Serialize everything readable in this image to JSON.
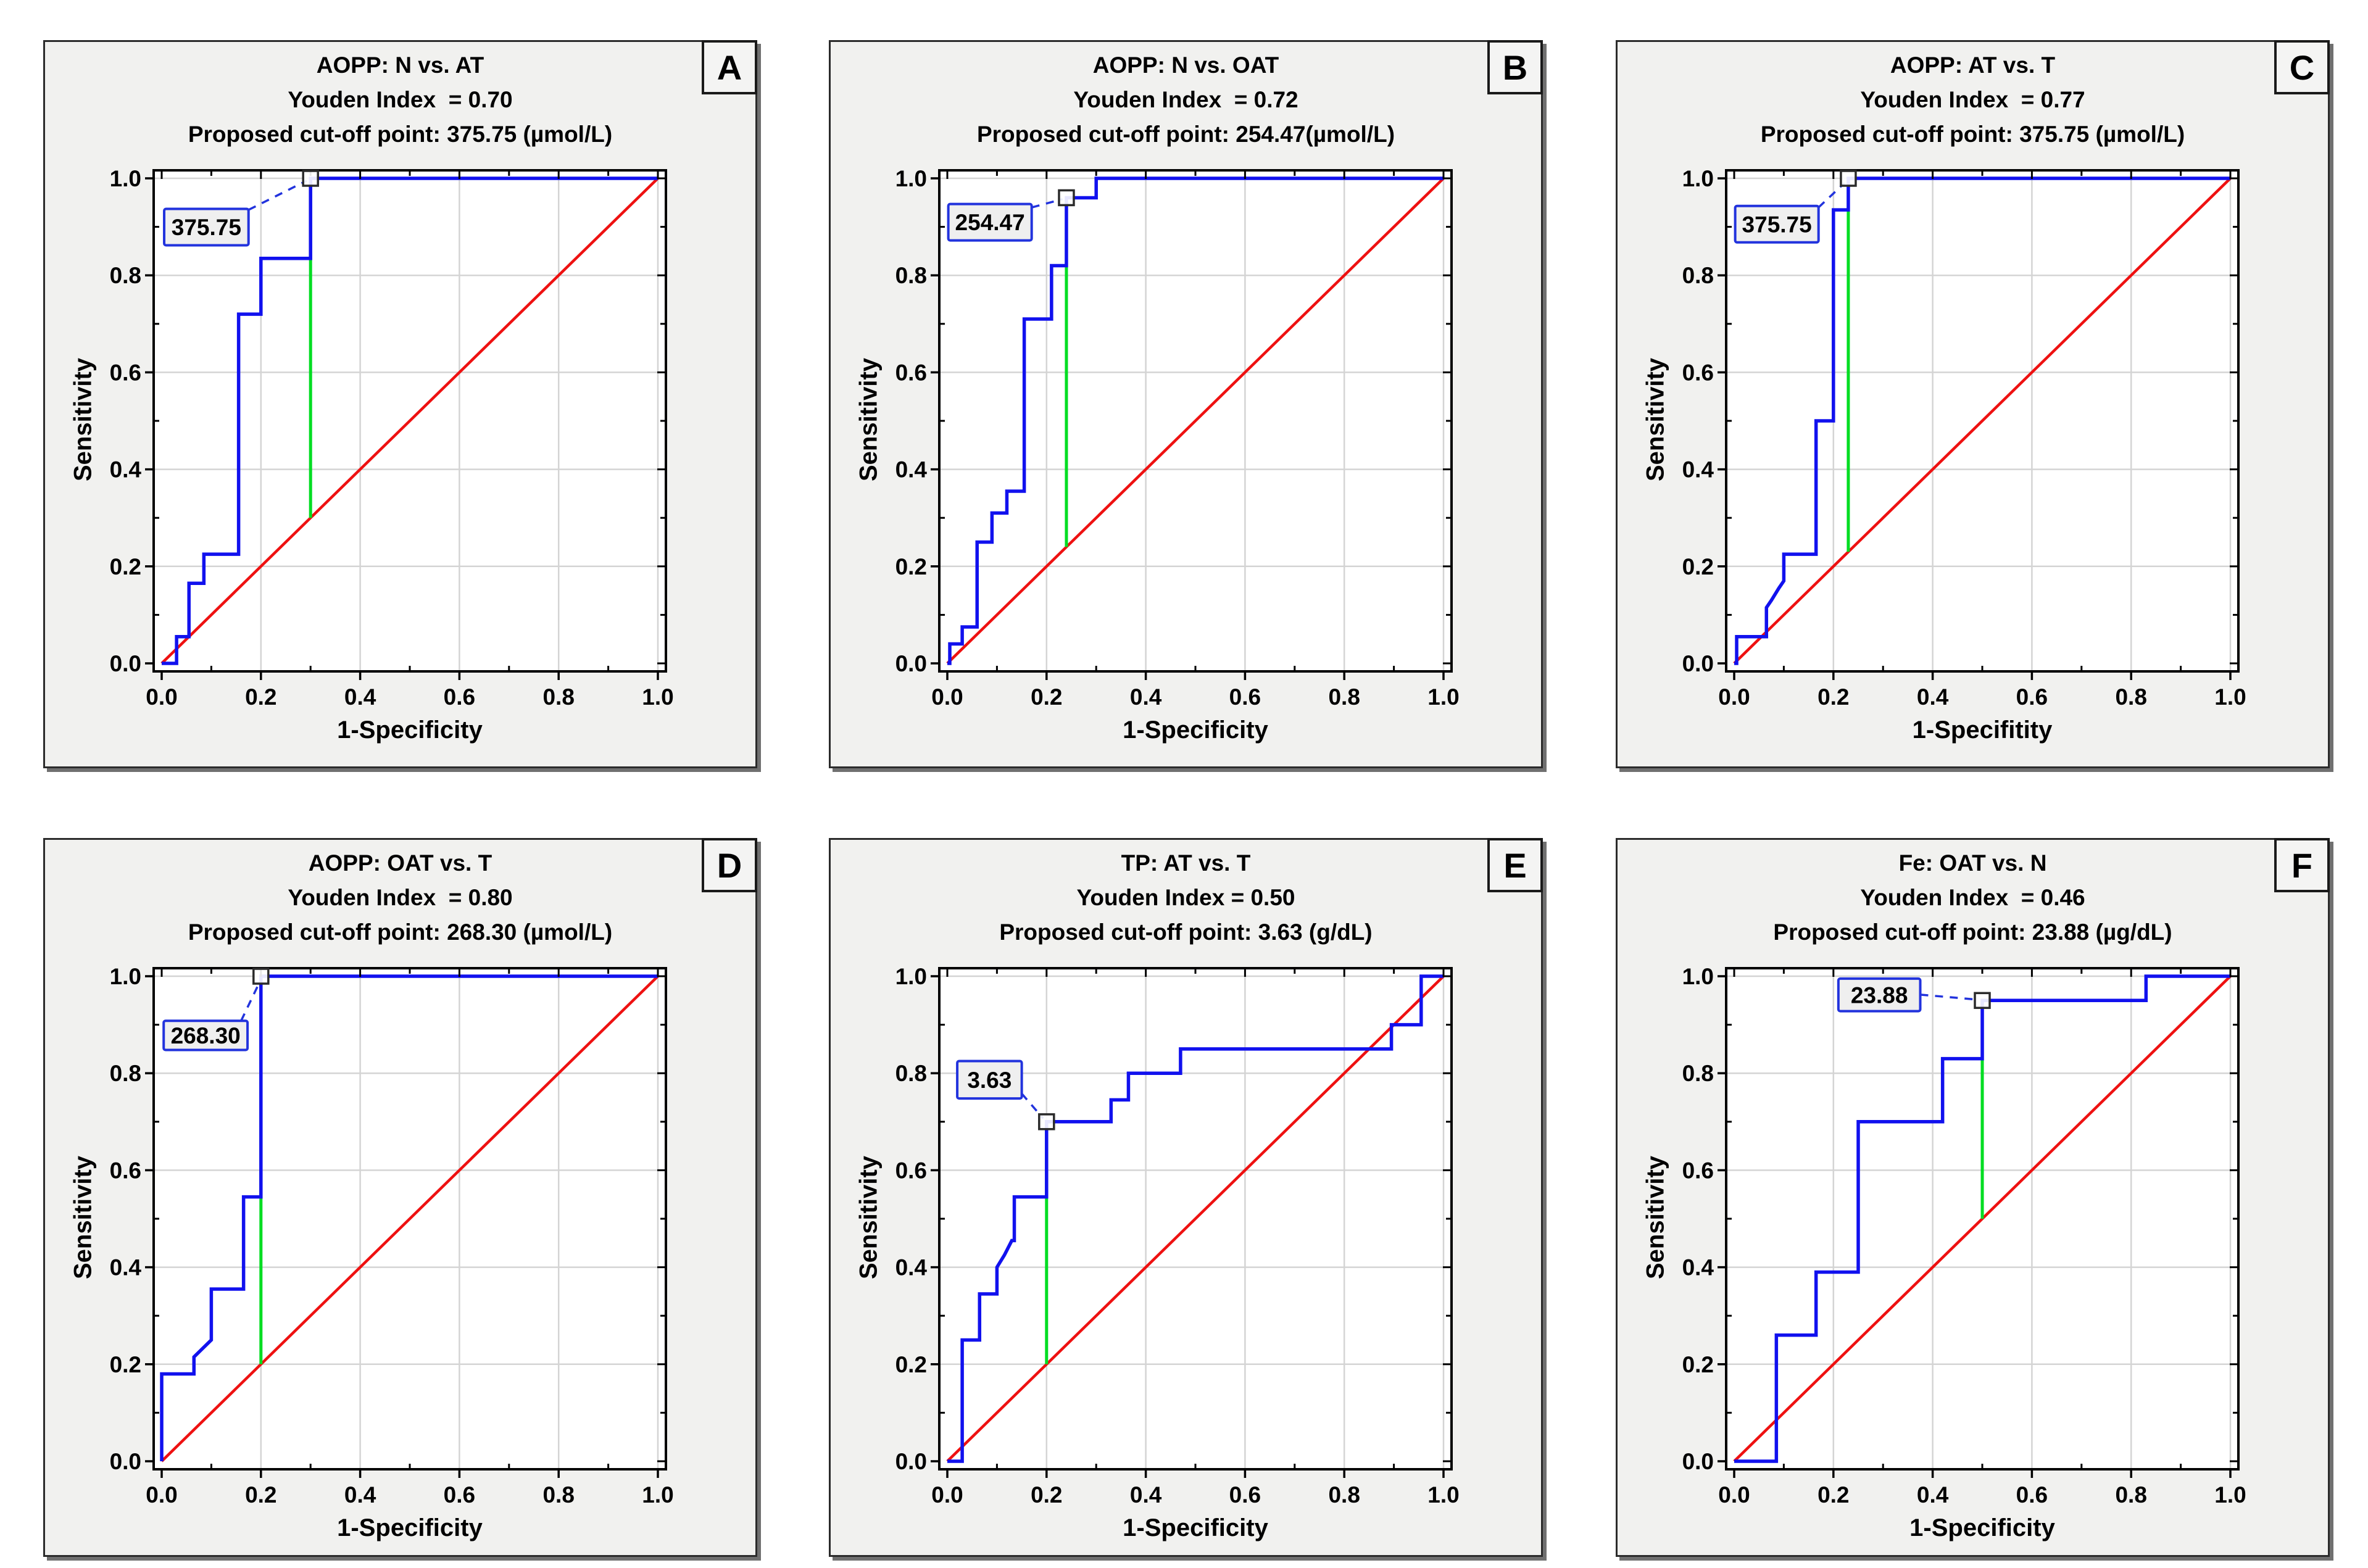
{
  "figure": {
    "background": "#ffffff",
    "layout": "2 rows x 3 columns of ROC curve panels"
  },
  "colors": {
    "panel_bg": "#f1f1ef",
    "panel_border": "#2b2b2b",
    "plot_bg": "#ffffff",
    "plot_border": "#000000",
    "grid": "#d4d4d4",
    "roc_curve": "#1111ee",
    "diagonal": "#ee1111",
    "cutoff_line": "#00dd22",
    "annotation_border": "#2233dd",
    "annotation_bg": "#efefef",
    "marker_border": "#2b2b2b",
    "text": "#000000"
  },
  "axis": {
    "x_ticks": [
      "0.0",
      "0.2",
      "0.4",
      "0.6",
      "0.8",
      "1.0"
    ],
    "y_ticks": [
      "0.0",
      "0.2",
      "0.4",
      "0.6",
      "0.8",
      "1.0"
    ],
    "x_range": [
      0,
      1
    ],
    "y_range": [
      0,
      1
    ],
    "major_step": 0.2,
    "minor_step": 0.1,
    "grid": "on"
  },
  "chart_data": [
    {
      "type": "line",
      "panel_letter": "A",
      "title": "AOPP: N vs. AT",
      "youden_label": "Youden Index  = 0.70",
      "youden_index": 0.7,
      "cutoff_label": "Proposed cut-off point: 375.75 (µmol/L)",
      "cutoff_value": 375.75,
      "cutoff_unit": "µmol/L",
      "annotation_value": "375.75",
      "xlabel": "1-Specificity",
      "ylabel": "Sensitivity",
      "roc_points": [
        [
          0,
          0
        ],
        [
          0.03,
          0
        ],
        [
          0.03,
          0.055
        ],
        [
          0.055,
          0.055
        ],
        [
          0.055,
          0.165
        ],
        [
          0.085,
          0.165
        ],
        [
          0.085,
          0.225
        ],
        [
          0.155,
          0.225
        ],
        [
          0.155,
          0.72
        ],
        [
          0.2,
          0.72
        ],
        [
          0.2,
          0.835
        ],
        [
          0.3,
          0.835
        ],
        [
          0.3,
          1
        ],
        [
          1,
          1
        ]
      ],
      "cutoff": {
        "x": 0.3,
        "roc_y": 1.0,
        "marker": [
          0.3,
          1.0
        ]
      },
      "annotation_box": [
        0.005,
        0.862,
        0.175,
        0.937
      ],
      "annotation_line": [
        [
          0.175,
          0.935
        ],
        [
          0.292,
          0.995
        ]
      ]
    },
    {
      "type": "line",
      "panel_letter": "B",
      "title": "AOPP: N vs. OAT",
      "youden_label": "Youden Index  = 0.72",
      "youden_index": 0.72,
      "cutoff_label": "Proposed cut-off point: 254.47(µmol/L)",
      "cutoff_value": 254.47,
      "cutoff_unit": "µmol/L",
      "annotation_value": "254.47",
      "xlabel": "1-Specificity",
      "ylabel": "Sensitivity",
      "roc_points": [
        [
          0,
          0
        ],
        [
          0.005,
          0
        ],
        [
          0.005,
          0.04
        ],
        [
          0.03,
          0.04
        ],
        [
          0.03,
          0.075
        ],
        [
          0.06,
          0.075
        ],
        [
          0.06,
          0.25
        ],
        [
          0.09,
          0.25
        ],
        [
          0.09,
          0.31
        ],
        [
          0.12,
          0.31
        ],
        [
          0.12,
          0.355
        ],
        [
          0.155,
          0.355
        ],
        [
          0.155,
          0.71
        ],
        [
          0.21,
          0.71
        ],
        [
          0.21,
          0.82
        ],
        [
          0.24,
          0.82
        ],
        [
          0.24,
          0.96
        ],
        [
          0.3,
          0.96
        ],
        [
          0.3,
          1
        ],
        [
          1,
          1
        ]
      ],
      "cutoff": {
        "x": 0.24,
        "roc_y": 0.96,
        "marker": [
          0.24,
          0.96
        ]
      },
      "annotation_box": [
        0.002,
        0.872,
        0.17,
        0.947
      ],
      "annotation_line": [
        [
          0.17,
          0.94
        ],
        [
          0.232,
          0.957
        ]
      ]
    },
    {
      "type": "line",
      "panel_letter": "C",
      "title": "AOPP: AT vs. T",
      "youden_label": "Youden Index  = 0.77",
      "youden_index": 0.77,
      "cutoff_label": "Proposed cut-off point: 375.75 (µmol/L)",
      "cutoff_value": 375.75,
      "cutoff_unit": "µmol/L",
      "annotation_value": "375.75",
      "xlabel": "1-Specifitity",
      "ylabel": "Sensitivity",
      "roc_points": [
        [
          0,
          0
        ],
        [
          0.005,
          0
        ],
        [
          0.005,
          0.055
        ],
        [
          0.065,
          0.055
        ],
        [
          0.065,
          0.115
        ],
        [
          0.075,
          0.13
        ],
        [
          0.09,
          0.155
        ],
        [
          0.1,
          0.17
        ],
        [
          0.1,
          0.225
        ],
        [
          0.165,
          0.225
        ],
        [
          0.165,
          0.5
        ],
        [
          0.2,
          0.5
        ],
        [
          0.2,
          0.935
        ],
        [
          0.23,
          0.935
        ],
        [
          0.23,
          1
        ],
        [
          1,
          1
        ]
      ],
      "cutoff": {
        "x": 0.23,
        "roc_y": 1.0,
        "marker": [
          0.23,
          1.0
        ]
      },
      "annotation_box": [
        0.002,
        0.868,
        0.17,
        0.943
      ],
      "annotation_line": [
        [
          0.17,
          0.94
        ],
        [
          0.222,
          0.99
        ]
      ]
    },
    {
      "type": "line",
      "panel_letter": "D",
      "title": "AOPP: OAT vs. T",
      "youden_label": "Youden Index  = 0.80",
      "youden_index": 0.8,
      "cutoff_label": "Proposed cut-off point: 268.30 (µmol/L)",
      "cutoff_value": 268.3,
      "cutoff_unit": "µmol/L",
      "annotation_value": "268.30",
      "xlabel": "1-Specificity",
      "ylabel": "Sensitivity",
      "roc_points": [
        [
          0,
          0
        ],
        [
          0,
          0.18
        ],
        [
          0.065,
          0.18
        ],
        [
          0.065,
          0.215
        ],
        [
          0.08,
          0.23
        ],
        [
          0.1,
          0.25
        ],
        [
          0.1,
          0.355
        ],
        [
          0.165,
          0.355
        ],
        [
          0.165,
          0.545
        ],
        [
          0.2,
          0.545
        ],
        [
          0.2,
          1
        ],
        [
          1,
          1
        ]
      ],
      "cutoff": {
        "x": 0.2,
        "roc_y": 1.0,
        "marker": [
          0.2,
          1.0
        ]
      },
      "annotation_box": [
        0.004,
        0.848,
        0.173,
        0.908
      ],
      "annotation_line": [
        [
          0.16,
          0.908
        ],
        [
          0.196,
          0.985
        ]
      ]
    },
    {
      "type": "line",
      "panel_letter": "E",
      "title": "TP: AT vs. T",
      "youden_label": "Youden Index = 0.50",
      "youden_index": 0.5,
      "cutoff_label": "Proposed cut-off point: 3.63 (g/dL)",
      "cutoff_value": 3.63,
      "cutoff_unit": "g/dL",
      "annotation_value": "3.63",
      "xlabel": "1-Specificity",
      "ylabel": "Sensitivity",
      "roc_points": [
        [
          0,
          0
        ],
        [
          0.03,
          0
        ],
        [
          0.03,
          0.25
        ],
        [
          0.065,
          0.25
        ],
        [
          0.065,
          0.345
        ],
        [
          0.1,
          0.345
        ],
        [
          0.1,
          0.4
        ],
        [
          0.115,
          0.425
        ],
        [
          0.13,
          0.455
        ],
        [
          0.135,
          0.455
        ],
        [
          0.135,
          0.545
        ],
        [
          0.2,
          0.545
        ],
        [
          0.2,
          0.7
        ],
        [
          0.33,
          0.7
        ],
        [
          0.33,
          0.745
        ],
        [
          0.365,
          0.745
        ],
        [
          0.365,
          0.8
        ],
        [
          0.47,
          0.8
        ],
        [
          0.47,
          0.85
        ],
        [
          0.895,
          0.85
        ],
        [
          0.895,
          0.9
        ],
        [
          0.955,
          0.9
        ],
        [
          0.955,
          1
        ],
        [
          1,
          1
        ]
      ],
      "cutoff": {
        "x": 0.2,
        "roc_y": 0.7,
        "marker": [
          0.2,
          0.7
        ]
      },
      "annotation_box": [
        0.02,
        0.748,
        0.15,
        0.825
      ],
      "annotation_line": [
        [
          0.15,
          0.758
        ],
        [
          0.193,
          0.707
        ]
      ]
    },
    {
      "type": "line",
      "panel_letter": "F",
      "title": "Fe: OAT vs. N",
      "youden_label": "Youden Index  = 0.46",
      "youden_index": 0.46,
      "cutoff_label": "Proposed cut-off point: 23.88 (µg/dL)",
      "cutoff_value": 23.88,
      "cutoff_unit": "µg/dL",
      "annotation_value": "23.88",
      "xlabel": "1-Specificity",
      "ylabel": "Sensitivity",
      "roc_points": [
        [
          0,
          0
        ],
        [
          0.085,
          0
        ],
        [
          0.085,
          0.26
        ],
        [
          0.165,
          0.26
        ],
        [
          0.165,
          0.39
        ],
        [
          0.25,
          0.39
        ],
        [
          0.25,
          0.7
        ],
        [
          0.42,
          0.7
        ],
        [
          0.42,
          0.83
        ],
        [
          0.5,
          0.83
        ],
        [
          0.5,
          0.95
        ],
        [
          0.83,
          0.95
        ],
        [
          0.83,
          1
        ],
        [
          1,
          1
        ]
      ],
      "cutoff": {
        "x": 0.5,
        "roc_y": 0.95,
        "marker": [
          0.5,
          0.95
        ]
      },
      "annotation_box": [
        0.21,
        0.928,
        0.375,
        0.995
      ],
      "annotation_line": [
        [
          0.375,
          0.962
        ],
        [
          0.488,
          0.952
        ]
      ]
    }
  ]
}
